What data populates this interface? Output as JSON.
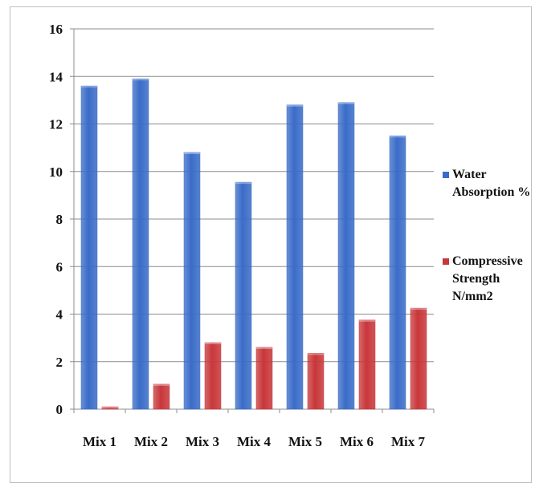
{
  "chart_data": {
    "type": "bar",
    "categories": [
      "Mix 1",
      "Mix 2",
      "Mix 3",
      "Mix 4",
      "Mix 5",
      "Mix 6",
      "Mix 7"
    ],
    "series": [
      {
        "name": "Water Absorption %",
        "legend_lines": [
          "Water",
          "Absorption %"
        ],
        "color": "#3a6cc8",
        "values": [
          13.6,
          13.9,
          10.8,
          9.55,
          12.8,
          12.9,
          11.5
        ]
      },
      {
        "name": "Compressive Strength N/mm2",
        "legend_lines": [
          "Compressive",
          "Strength",
          "N/mm2"
        ],
        "color": "#c8373a",
        "values": [
          0.1,
          1.05,
          2.8,
          2.6,
          2.35,
          3.75,
          4.25
        ]
      }
    ],
    "ylim": [
      0,
      16
    ],
    "yticks": [
      0,
      2,
      4,
      6,
      8,
      10,
      12,
      14,
      16
    ],
    "grid": true,
    "legend_position": "right",
    "title": "",
    "xlabel": "",
    "ylabel": ""
  }
}
